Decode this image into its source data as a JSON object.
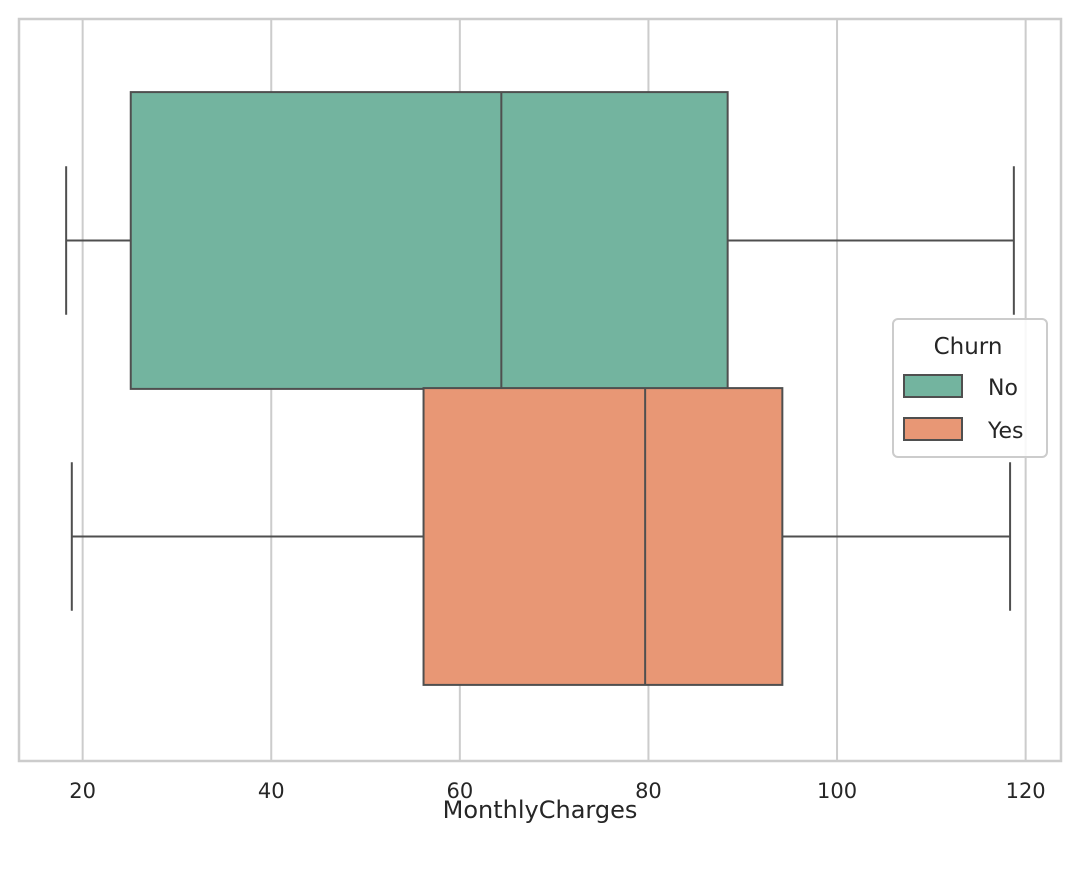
{
  "chart_data": {
    "type": "boxplot",
    "orientation": "horizontal",
    "xlabel": "MonthlyCharges",
    "ylabel": "",
    "xlim": [
      13.25,
      123.75
    ],
    "xticks": [
      20,
      40,
      60,
      80,
      100,
      120
    ],
    "xtick_labels": [
      "20",
      "40",
      "60",
      "80",
      "100",
      "120"
    ],
    "grid": true,
    "legend": {
      "title": "Churn",
      "placement": "center-right"
    },
    "series": [
      {
        "name": "No",
        "color": "#73b49f",
        "whisker_low": 18.25,
        "q1": 25.1,
        "median": 64.4,
        "q3": 88.4,
        "whisker_high": 118.75
      },
      {
        "name": "Yes",
        "color": "#e89775",
        "whisker_low": 18.85,
        "q1": 56.15,
        "median": 79.65,
        "q3": 94.2,
        "whisker_high": 118.35
      }
    ]
  }
}
